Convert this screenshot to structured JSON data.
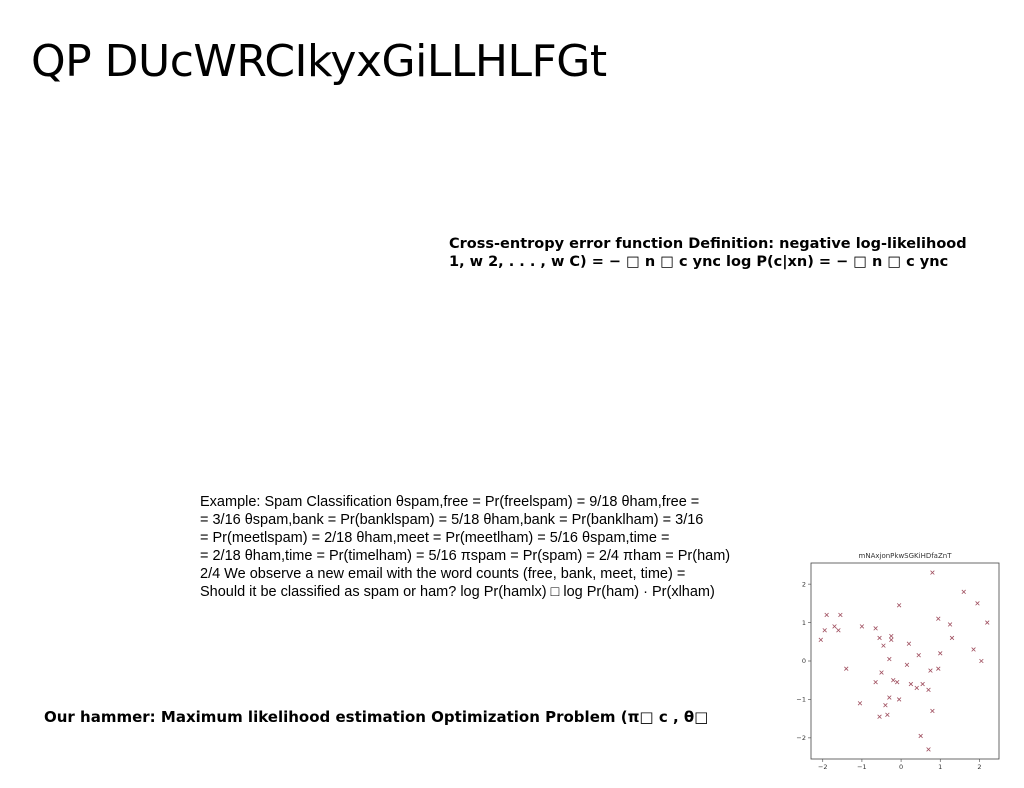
{
  "slide": {
    "title": "QP DUcWRCIkyxGiLLHLFGt"
  },
  "cross_entropy": {
    "lines": [
      "Cross-entropy error function Definition: negative log-likelihood",
      "1, w 2, . . . , w C) = − □ n □ c ync log P(c|xn) = − □ n □ c ync"
    ]
  },
  "example": {
    "lines": [
      "Example: Spam Classification θspam,free = Pr(freelspam) = 9/18 θham,free =",
      "= 3/16 θspam,bank = Pr(banklspam) = 5/18 θham,bank = Pr(banklham) = 3/16",
      "= Pr(meetlspam) = 2/18 θham,meet = Pr(meetlham) = 5/16 θspam,time =",
      "= 2/18 θham,time = Pr(timelham) = 5/16 πspam = Pr(spam) = 2/4 πham = Pr(ham)",
      "2/4 We observe a new email with the word counts (free, bank, meet, time) =",
      "Should it be classified as spam or ham? log Pr(hamlx) □ log Pr(ham) · Pr(xlham)"
    ]
  },
  "hammer": {
    "text": "Our hammer: Maximum likelihood estimation Optimization Problem (π□ c , θ□"
  },
  "chart_data": {
    "type": "scatter",
    "title": "mNAxjonPkwSGKiHDfaZnT",
    "xlabel": "",
    "ylabel": "",
    "xlim": [
      -2.3,
      2.5
    ],
    "ylim": [
      -2.55,
      2.55
    ],
    "xticks": [
      -2,
      -1,
      0,
      1,
      2
    ],
    "yticks": [
      -2,
      -1,
      0,
      1,
      2
    ],
    "marker": "x",
    "color": "#a05060",
    "points": [
      [
        0.8,
        2.3
      ],
      [
        1.6,
        1.8
      ],
      [
        1.95,
        1.5
      ],
      [
        2.2,
        1.0
      ],
      [
        -0.05,
        1.45
      ],
      [
        -2.05,
        0.55
      ],
      [
        -1.95,
        0.8
      ],
      [
        -1.9,
        1.2
      ],
      [
        -1.7,
        0.9
      ],
      [
        -1.6,
        0.8
      ],
      [
        -1.55,
        1.2
      ],
      [
        -1.4,
        -0.2
      ],
      [
        -1.0,
        0.9
      ],
      [
        -0.65,
        0.85
      ],
      [
        -0.55,
        0.6
      ],
      [
        -0.45,
        0.4
      ],
      [
        -0.25,
        0.65
      ],
      [
        -0.25,
        0.55
      ],
      [
        0.2,
        0.45
      ],
      [
        0.95,
        1.1
      ],
      [
        1.25,
        0.95
      ],
      [
        1.3,
        0.6
      ],
      [
        -0.3,
        0.05
      ],
      [
        0.15,
        -0.1
      ],
      [
        0.45,
        0.15
      ],
      [
        0.75,
        -0.25
      ],
      [
        0.95,
        -0.2
      ],
      [
        1.0,
        0.2
      ],
      [
        1.85,
        0.3
      ],
      [
        2.05,
        0.0
      ],
      [
        -0.65,
        -0.55
      ],
      [
        -0.5,
        -0.3
      ],
      [
        -0.2,
        -0.5
      ],
      [
        -0.1,
        -0.55
      ],
      [
        0.25,
        -0.6
      ],
      [
        0.4,
        -0.7
      ],
      [
        0.55,
        -0.6
      ],
      [
        0.7,
        -0.75
      ],
      [
        -1.05,
        -1.1
      ],
      [
        -0.55,
        -1.45
      ],
      [
        -0.35,
        -1.4
      ],
      [
        -0.4,
        -1.15
      ],
      [
        -0.3,
        -0.95
      ],
      [
        -0.05,
        -1.0
      ],
      [
        0.5,
        -1.95
      ],
      [
        0.8,
        -1.3
      ],
      [
        0.7,
        -2.3
      ]
    ]
  }
}
